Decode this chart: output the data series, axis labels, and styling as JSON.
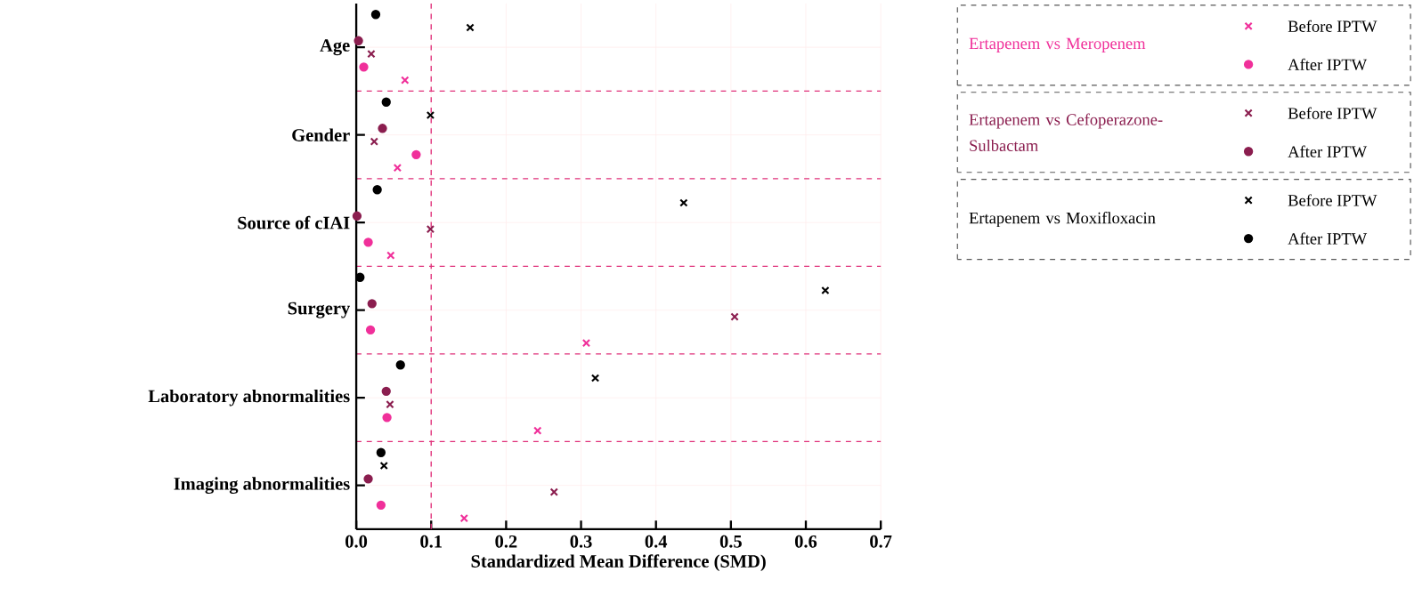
{
  "chart_data": {
    "type": "scatter",
    "orientation": "horizontal",
    "xlabel": "Standardized Mean Difference (SMD)",
    "categories": [
      "Age",
      "Gender",
      "Source of cIAI",
      "Surgery",
      "Laboratory abnormalities",
      "Imaging abnormalities"
    ],
    "series": [
      {
        "name": "Before IPTW",
        "color": "#f0309a",
        "marker": "cross",
        "values": [
          0.065,
          0.055,
          0.046,
          0.307,
          0.242,
          0.144
        ]
      },
      {
        "name": "After IPTW",
        "color": "#f0309a",
        "marker": "circle",
        "values": [
          0.01,
          0.08,
          0.016,
          0.019,
          0.041,
          0.033
        ]
      },
      {
        "name": "Before IPTW",
        "color": "#8b1e4f",
        "marker": "cross",
        "values": [
          0.02,
          0.024,
          0.099,
          0.505,
          0.045,
          0.264
        ]
      },
      {
        "name": "After IPTW",
        "color": "#8b1e4f",
        "marker": "circle",
        "values": [
          0.003,
          0.035,
          0.001,
          0.021,
          0.04,
          0.016
        ]
      },
      {
        "name": "Before IPTW",
        "color": "#000000",
        "marker": "cross",
        "values": [
          0.152,
          0.099,
          0.437,
          0.626,
          0.319,
          0.037
        ]
      },
      {
        "name": "After IPTW",
        "color": "#000000",
        "marker": "circle",
        "values": [
          0.026,
          0.04,
          0.028,
          0.005,
          0.059,
          0.033
        ]
      }
    ],
    "annotations": [
      "Ertapenem vs Meropenem",
      "Ertapenem vs Cefoperazone-Sulbactam",
      "Ertapenem vs Moxifloxacin"
    ],
    "xlim": [
      0,
      0.7
    ],
    "xticks": [
      {
        "value": 0,
        "label": "0.0"
      },
      {
        "value": 0.1,
        "label": "0.1"
      },
      {
        "value": 0.2,
        "label": "0.2"
      },
      {
        "value": 0.3,
        "label": "0.3"
      },
      {
        "value": 0.4,
        "label": "0.4"
      },
      {
        "value": 0.5,
        "label": "0.5"
      },
      {
        "value": 0.6,
        "label": "0.6"
      },
      {
        "value": 0.7,
        "label": "0.7"
      }
    ],
    "ref_lines": [
      {
        "axis": "x",
        "value": 0.1,
        "color": "#e0307a",
        "line_style": "dashed"
      }
    ],
    "grid": true,
    "legend": "top right"
  }
}
